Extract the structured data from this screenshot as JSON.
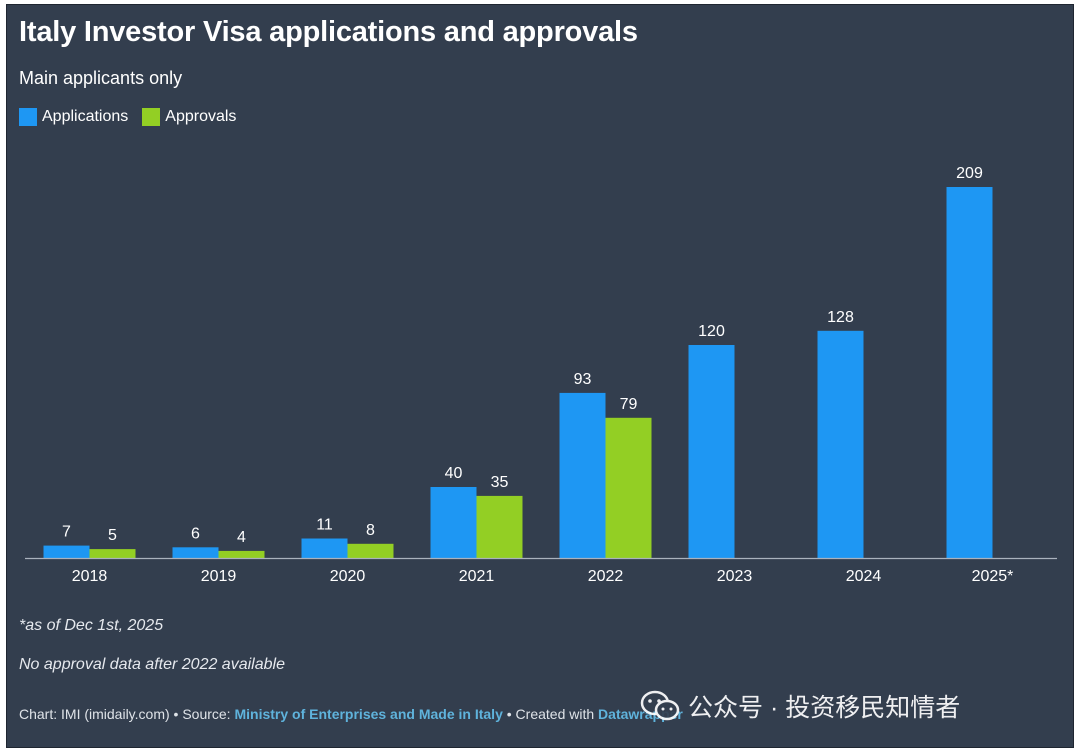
{
  "title": "Italy Investor Visa applications and approvals",
  "subtitle": "Main applicants only",
  "colors": {
    "applications": "#1e97f3",
    "approvals": "#93cf24",
    "background": "#333e4e",
    "axis": "#aab2bd",
    "text": "#ffffff"
  },
  "notes": {
    "asof": "*as of Dec 1st, 2025",
    "no_data": "No approval data after 2022 available"
  },
  "footer": {
    "prefix": "Chart: IMI (imidaily.com) • Source: ",
    "source_link": "Ministry of Enterprises and Made in Italy",
    "middle": " • Created with ",
    "tool_link": "Datawrapper"
  },
  "watermark": {
    "icon": "wechat-icon",
    "text": "公众号 · 投资移民知情者"
  },
  "chart_data": {
    "type": "bar",
    "categories": [
      "2018",
      "2019",
      "2020",
      "2021",
      "2022",
      "2023",
      "2024",
      "2025*"
    ],
    "series": [
      {
        "name": "Applications",
        "values": [
          7,
          6,
          11,
          40,
          93,
          120,
          128,
          209
        ]
      },
      {
        "name": "Approvals",
        "values": [
          5,
          4,
          8,
          35,
          79,
          null,
          null,
          null
        ]
      }
    ],
    "ylim": [
      0,
      209
    ],
    "legend": "top-left",
    "grid": false,
    "data_labels": true
  }
}
